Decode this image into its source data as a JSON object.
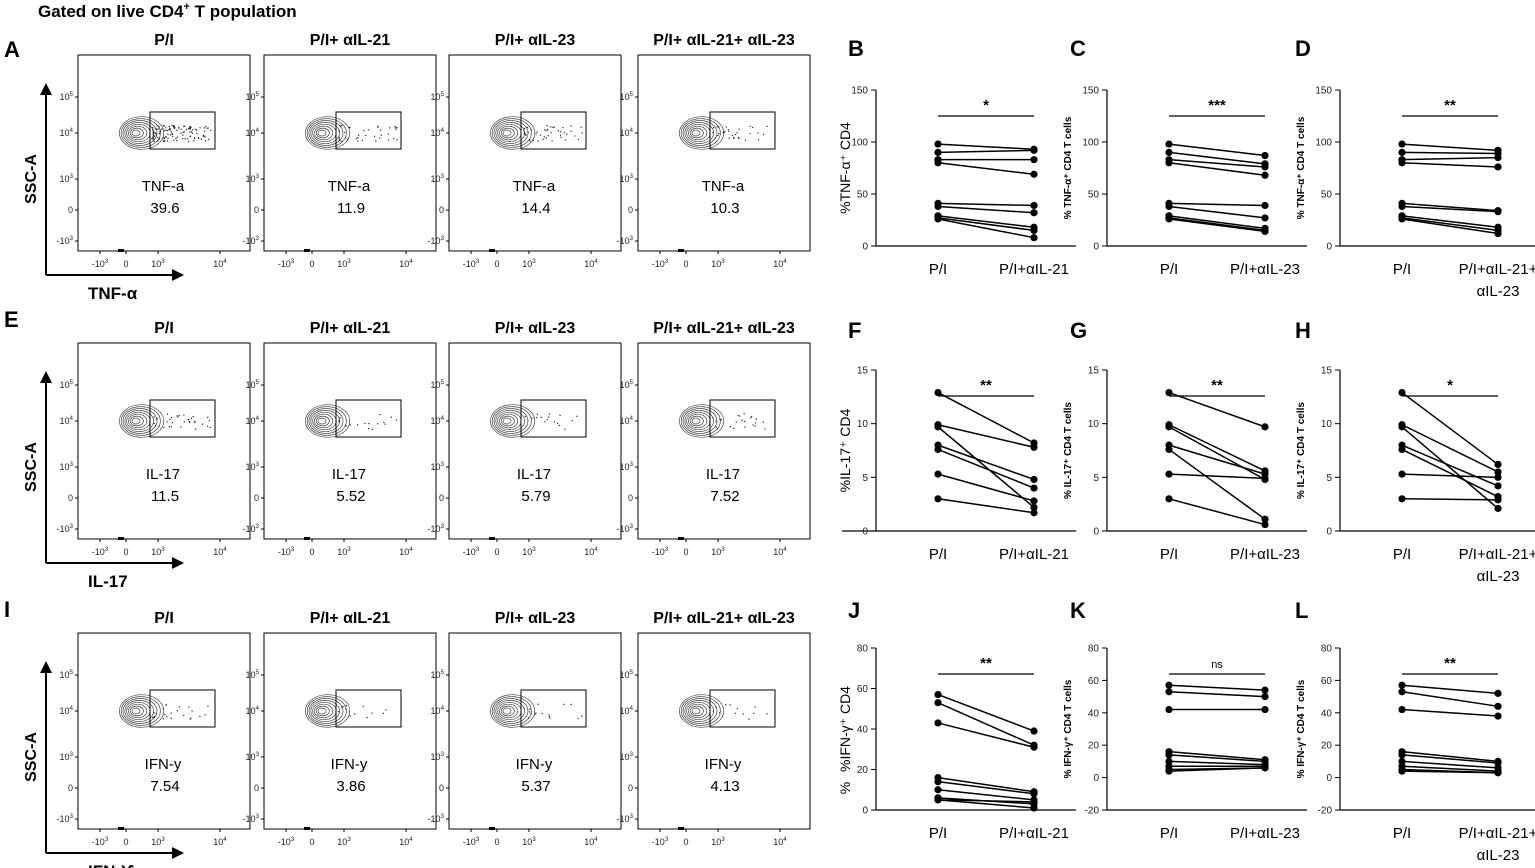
{
  "header": {
    "title": "Gated on live CD4",
    "title_sup": "+",
    "title_tail": " T population"
  },
  "flow_axis": {
    "x_ticks": [
      "-10",
      "0",
      "10",
      "10"
    ],
    "x_tick_exps": [
      "3",
      "",
      "3",
      "4"
    ],
    "y_ticks": [
      "10",
      "10",
      "10",
      "0",
      "-10"
    ],
    "y_tick_exps": [
      "5",
      "4",
      "3",
      "",
      "3"
    ]
  },
  "flow_rows": [
    {
      "letter": "A",
      "marker": "TNF-α",
      "yaxis": "SSC-A",
      "panels": [
        {
          "title": "P/I",
          "gate_label": "TNF-a",
          "value": "39.6"
        },
        {
          "title": "P/I+ αIL-21",
          "gate_label": "TNF-a",
          "value": "11.9"
        },
        {
          "title": "P/I+ αIL-23",
          "gate_label": "TNF-a",
          "value": "14.4"
        },
        {
          "title": "P/I+ αIL-21+ αIL-23",
          "gate_label": "TNF-a",
          "value": "10.3"
        }
      ]
    },
    {
      "letter": "E",
      "marker": "IL-17",
      "yaxis": "SSC-A",
      "panels": [
        {
          "title": "P/I",
          "gate_label": "IL-17",
          "value": "11.5"
        },
        {
          "title": "P/I+ αIL-21",
          "gate_label": "IL-17",
          "value": "5.52"
        },
        {
          "title": "P/I+ αIL-23",
          "gate_label": "IL-17",
          "value": "5.79"
        },
        {
          "title": "P/I+ αIL-21+ αIL-23",
          "gate_label": "IL-17",
          "value": "7.52"
        }
      ]
    },
    {
      "letter": "I",
      "marker": "IFN-ϒ",
      "yaxis": "SSC-A",
      "panels": [
        {
          "title": "P/I",
          "gate_label": "IFN-y",
          "value": "7.54"
        },
        {
          "title": "P/I+ αIL-21",
          "gate_label": "IFN-y",
          "value": "3.86"
        },
        {
          "title": "P/I+ αIL-23",
          "gate_label": "IFN-y",
          "value": "5.37"
        },
        {
          "title": "P/I+ αIL-21+ αIL-23",
          "gate_label": "IFN-y",
          "value": "4.13"
        }
      ]
    }
  ],
  "chart_data": [
    {
      "type": "line",
      "letter": "B",
      "ylabel": "%TNF-α⁺ CD4",
      "categories": [
        "P/I",
        "P/I+αIL-21"
      ],
      "ylim": [
        0,
        150
      ],
      "yticks": [
        "0",
        "50",
        "100",
        "150"
      ],
      "significance": "*",
      "series": [
        [
          98,
          93
        ],
        [
          90,
          92
        ],
        [
          83,
          83
        ],
        [
          80,
          69
        ],
        [
          41,
          39
        ],
        [
          38,
          32
        ],
        [
          29,
          18
        ],
        [
          27,
          15
        ],
        [
          26,
          8
        ]
      ]
    },
    {
      "type": "line",
      "letter": "C",
      "ylabel": "% TNF-α⁺ CD4 T cells",
      "categories": [
        "P/I",
        "P/I+αIL-23"
      ],
      "ylim": [
        0,
        150
      ],
      "yticks": [
        "0",
        "50",
        "100",
        "150"
      ],
      "significance": "***",
      "series": [
        [
          98,
          87
        ],
        [
          90,
          79
        ],
        [
          83,
          76
        ],
        [
          80,
          68
        ],
        [
          41,
          39
        ],
        [
          38,
          27
        ],
        [
          29,
          17
        ],
        [
          27,
          15
        ],
        [
          26,
          14
        ]
      ]
    },
    {
      "type": "line",
      "letter": "D",
      "ylabel": "% TNF-α⁺ CD4 T cells",
      "categories": [
        "P/I",
        "P/I+αIL-21+",
        "αIL-23"
      ],
      "ylim": [
        0,
        150
      ],
      "yticks": [
        "0",
        "50",
        "100",
        "150"
      ],
      "significance": "**",
      "series": [
        [
          98,
          92
        ],
        [
          90,
          89
        ],
        [
          83,
          85
        ],
        [
          80,
          76
        ],
        [
          41,
          34
        ],
        [
          38,
          33
        ],
        [
          29,
          18
        ],
        [
          27,
          15
        ],
        [
          26,
          12
        ]
      ]
    },
    {
      "type": "line",
      "letter": "F",
      "ylabel": "%IL-17⁺ CD4",
      "categories": [
        "P/I",
        "P/I+αIL-21"
      ],
      "ylim": [
        0,
        15
      ],
      "yticks": [
        "0",
        "5",
        "10",
        "15"
      ],
      "significance": "**",
      "series": [
        [
          12.9,
          8.2
        ],
        [
          9.9,
          7.8
        ],
        [
          8.0,
          4.8
        ],
        [
          7.6,
          4.0
        ],
        [
          5.3,
          2.8
        ],
        [
          3.0,
          1.7
        ],
        [
          9.7,
          2.2
        ]
      ]
    },
    {
      "type": "line",
      "letter": "G",
      "ylabel": "% IL-17⁺ CD4 T cells",
      "categories": [
        "P/I",
        "P/I+αIL-23"
      ],
      "ylim": [
        0,
        15
      ],
      "yticks": [
        "0",
        "5",
        "10",
        "15"
      ],
      "significance": "**",
      "series": [
        [
          12.9,
          9.7
        ],
        [
          9.9,
          5.6
        ],
        [
          8.0,
          5.3
        ],
        [
          7.6,
          1.1
        ],
        [
          5.3,
          4.9
        ],
        [
          3.0,
          0.6
        ],
        [
          9.7,
          4.8
        ]
      ]
    },
    {
      "type": "line",
      "letter": "H",
      "ylabel": "% IL-17⁺ CD4 T cells",
      "categories": [
        "P/I",
        "P/I+αIL-21+",
        "αIL-23"
      ],
      "ylim": [
        0,
        15
      ],
      "yticks": [
        "0",
        "5",
        "10",
        "15"
      ],
      "significance": "*",
      "series": [
        [
          12.9,
          6.2
        ],
        [
          9.9,
          5.5
        ],
        [
          8.0,
          4.2
        ],
        [
          7.6,
          3.2
        ],
        [
          5.3,
          5.0
        ],
        [
          3.0,
          2.9
        ],
        [
          9.7,
          2.1
        ]
      ]
    },
    {
      "type": "line",
      "letter": "J",
      "ylabel": "%IFN-γ⁺ CD4",
      "ylabel2": "%",
      "categories": [
        "P/I",
        "P/I+αIL-21"
      ],
      "ylim": [
        0,
        80
      ],
      "yticks": [
        "0",
        "20",
        "40",
        "60",
        "80"
      ],
      "significance": "**",
      "series": [
        [
          57,
          39
        ],
        [
          53,
          32
        ],
        [
          43,
          31
        ],
        [
          16,
          9
        ],
        [
          14,
          8
        ],
        [
          10,
          5
        ],
        [
          6,
          3
        ],
        [
          5,
          4
        ],
        [
          5,
          1
        ]
      ]
    },
    {
      "type": "line",
      "letter": "K",
      "ylabel": "% IFN-γ⁺ CD4 T cells",
      "categories": [
        "P/I",
        "P/I+αIL-23"
      ],
      "ylim": [
        -20,
        80
      ],
      "yticks": [
        "-20",
        "0",
        "20",
        "40",
        "60",
        "80"
      ],
      "significance": "ns",
      "series": [
        [
          57,
          54
        ],
        [
          53,
          50
        ],
        [
          42,
          42
        ],
        [
          16,
          11
        ],
        [
          14,
          10
        ],
        [
          10,
          8
        ],
        [
          7,
          7
        ],
        [
          5,
          6
        ],
        [
          4,
          6
        ]
      ]
    },
    {
      "type": "line",
      "letter": "L",
      "ylabel": "% IFN-γ⁺ CD4 T cells",
      "categories": [
        "P/I",
        "P/I+αIL-21+",
        "αIL-23"
      ],
      "ylim": [
        -20,
        80
      ],
      "yticks": [
        "-20",
        "0",
        "20",
        "40",
        "60",
        "80"
      ],
      "significance": "**",
      "series": [
        [
          57,
          52
        ],
        [
          53,
          44
        ],
        [
          42,
          38
        ],
        [
          16,
          10
        ],
        [
          14,
          9
        ],
        [
          10,
          6
        ],
        [
          7,
          4
        ],
        [
          5,
          3
        ],
        [
          4,
          3
        ]
      ]
    }
  ]
}
